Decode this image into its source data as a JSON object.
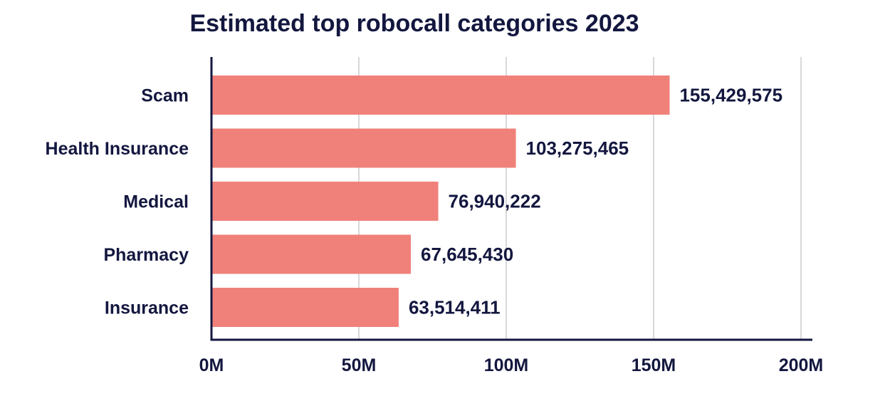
{
  "chart_data": {
    "type": "bar",
    "orientation": "horizontal",
    "title": "Estimated top robocall categories 2023",
    "xlabel": "",
    "ylabel": "",
    "categories": [
      "Scam",
      "Health Insurance",
      "Medical",
      "Pharmacy",
      "Insurance"
    ],
    "values": [
      155429575,
      103275465,
      76940222,
      67645430,
      63514411
    ],
    "value_labels": [
      "155,429,575",
      "103,275,465",
      "76,940,222",
      "67,645,430",
      "63,514,411"
    ],
    "xlim": [
      0,
      200000000
    ],
    "x_ticks": [
      0,
      50000000,
      100000000,
      150000000,
      200000000
    ],
    "x_tick_labels": [
      "0M",
      "50M",
      "100M",
      "150M",
      "200M"
    ],
    "grid": true,
    "legend": "none",
    "colors": {
      "bar": "#f0817a",
      "text": "#13173f",
      "grid": "#d8d8d8",
      "axis": "#13173f"
    }
  }
}
